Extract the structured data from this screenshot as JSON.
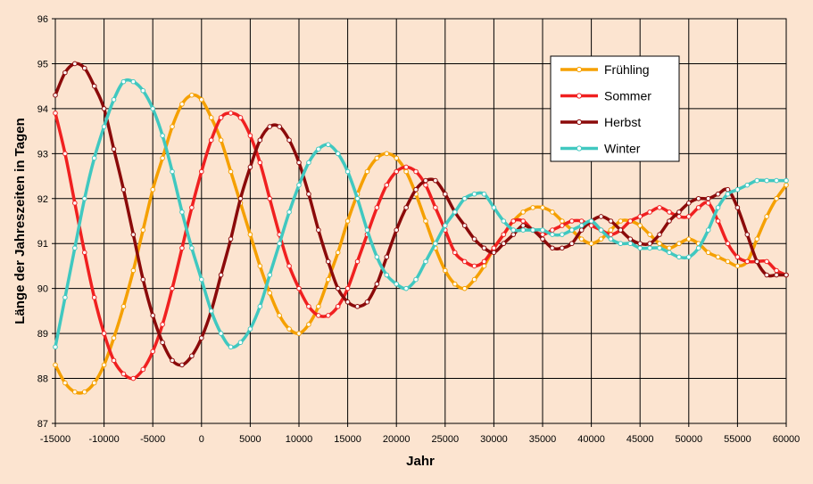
{
  "chart_data": {
    "type": "line",
    "xlabel": "Jahr",
    "ylabel": "Länge der Jahreszeiten in Tagen",
    "xlim": [
      -15000,
      60000
    ],
    "ylim": [
      87,
      96
    ],
    "xticks": [
      -15000,
      -10000,
      -5000,
      0,
      5000,
      10000,
      15000,
      20000,
      25000,
      30000,
      35000,
      40000,
      45000,
      50000,
      55000,
      60000
    ],
    "yticks": [
      87,
      88,
      89,
      90,
      91,
      92,
      93,
      94,
      95,
      96
    ],
    "grid": true,
    "legend_position": "top-right",
    "x": [
      -15000,
      -14000,
      -13000,
      -12000,
      -11000,
      -10000,
      -9000,
      -8000,
      -7000,
      -6000,
      -5000,
      -4000,
      -3000,
      -2000,
      -1000,
      0,
      1000,
      2000,
      3000,
      4000,
      5000,
      6000,
      7000,
      8000,
      9000,
      10000,
      11000,
      12000,
      13000,
      14000,
      15000,
      16000,
      17000,
      18000,
      19000,
      20000,
      21000,
      22000,
      23000,
      24000,
      25000,
      26000,
      27000,
      28000,
      29000,
      30000,
      31000,
      32000,
      33000,
      34000,
      35000,
      36000,
      37000,
      38000,
      39000,
      40000,
      41000,
      42000,
      43000,
      44000,
      45000,
      46000,
      47000,
      48000,
      49000,
      50000,
      51000,
      52000,
      53000,
      54000,
      55000,
      56000,
      57000,
      58000,
      59000,
      60000
    ],
    "series": [
      {
        "name": "Frühling",
        "color": "#F5A000",
        "values": [
          88.3,
          87.9,
          87.7,
          87.7,
          87.9,
          88.3,
          88.9,
          89.6,
          90.4,
          91.3,
          92.2,
          92.9,
          93.6,
          94.1,
          94.3,
          94.2,
          93.8,
          93.3,
          92.6,
          91.9,
          91.2,
          90.5,
          89.9,
          89.4,
          89.1,
          89.0,
          89.2,
          89.6,
          90.2,
          90.8,
          91.5,
          92.1,
          92.6,
          92.9,
          93.0,
          92.9,
          92.6,
          92.1,
          91.5,
          90.9,
          90.4,
          90.1,
          90.0,
          90.2,
          90.5,
          90.9,
          91.2,
          91.5,
          91.7,
          91.8,
          91.8,
          91.7,
          91.5,
          91.3,
          91.1,
          91.0,
          91.1,
          91.3,
          91.5,
          91.5,
          91.4,
          91.2,
          91.0,
          90.9,
          91.0,
          91.1,
          91.0,
          90.8,
          90.7,
          90.6,
          90.5,
          90.6,
          91.1,
          91.6,
          92.0,
          92.3
        ]
      },
      {
        "name": "Sommer",
        "color": "#F02020",
        "values": [
          93.9,
          93.0,
          91.9,
          90.8,
          89.8,
          89.0,
          88.4,
          88.1,
          88.0,
          88.2,
          88.6,
          89.2,
          90.0,
          90.9,
          91.8,
          92.6,
          93.3,
          93.8,
          93.9,
          93.8,
          93.4,
          92.8,
          92.0,
          91.2,
          90.5,
          90.0,
          89.6,
          89.4,
          89.4,
          89.6,
          90.0,
          90.6,
          91.2,
          91.8,
          92.3,
          92.6,
          92.7,
          92.6,
          92.3,
          91.8,
          91.3,
          90.8,
          90.6,
          90.5,
          90.6,
          90.9,
          91.2,
          91.5,
          91.5,
          91.3,
          91.2,
          91.3,
          91.4,
          91.5,
          91.5,
          91.4,
          91.3,
          91.2,
          91.3,
          91.5,
          91.6,
          91.7,
          91.8,
          91.7,
          91.6,
          91.6,
          91.8,
          91.9,
          91.5,
          91.0,
          90.7,
          90.6,
          90.6,
          90.6,
          90.4,
          90.3
        ]
      },
      {
        "name": "Herbst",
        "color": "#8B0A0A",
        "values": [
          94.3,
          94.8,
          95.0,
          94.9,
          94.5,
          94.0,
          93.1,
          92.2,
          91.2,
          90.2,
          89.4,
          88.8,
          88.4,
          88.3,
          88.5,
          88.9,
          89.5,
          90.3,
          91.1,
          92.0,
          92.7,
          93.3,
          93.6,
          93.6,
          93.3,
          92.8,
          92.1,
          91.3,
          90.6,
          90.0,
          89.7,
          89.6,
          89.7,
          90.1,
          90.7,
          91.3,
          91.8,
          92.2,
          92.4,
          92.4,
          92.1,
          91.7,
          91.4,
          91.1,
          90.9,
          90.8,
          91.0,
          91.2,
          91.4,
          91.3,
          91.1,
          90.9,
          90.9,
          91.0,
          91.3,
          91.5,
          91.6,
          91.5,
          91.3,
          91.1,
          91.0,
          91.0,
          91.2,
          91.5,
          91.7,
          91.9,
          92.0,
          92.0,
          92.1,
          92.2,
          91.8,
          91.2,
          90.6,
          90.3,
          90.3,
          90.3
        ]
      },
      {
        "name": "Winter",
        "color": "#40C8C0",
        "values": [
          88.7,
          89.8,
          90.9,
          92.0,
          92.9,
          93.6,
          94.2,
          94.6,
          94.6,
          94.4,
          94.0,
          93.4,
          92.6,
          91.7,
          90.9,
          90.2,
          89.5,
          89.0,
          88.7,
          88.8,
          89.1,
          89.6,
          90.3,
          91.0,
          91.7,
          92.3,
          92.8,
          93.1,
          93.2,
          93.0,
          92.6,
          92.0,
          91.3,
          90.7,
          90.3,
          90.1,
          90.0,
          90.2,
          90.6,
          91.0,
          91.4,
          91.7,
          92.0,
          92.1,
          92.1,
          91.8,
          91.5,
          91.3,
          91.3,
          91.3,
          91.3,
          91.2,
          91.2,
          91.3,
          91.4,
          91.5,
          91.3,
          91.1,
          91.0,
          91.0,
          90.9,
          90.9,
          90.9,
          90.8,
          90.7,
          90.7,
          90.9,
          91.3,
          91.8,
          92.1,
          92.2,
          92.3,
          92.4,
          92.4,
          92.4,
          92.4
        ]
      }
    ]
  }
}
